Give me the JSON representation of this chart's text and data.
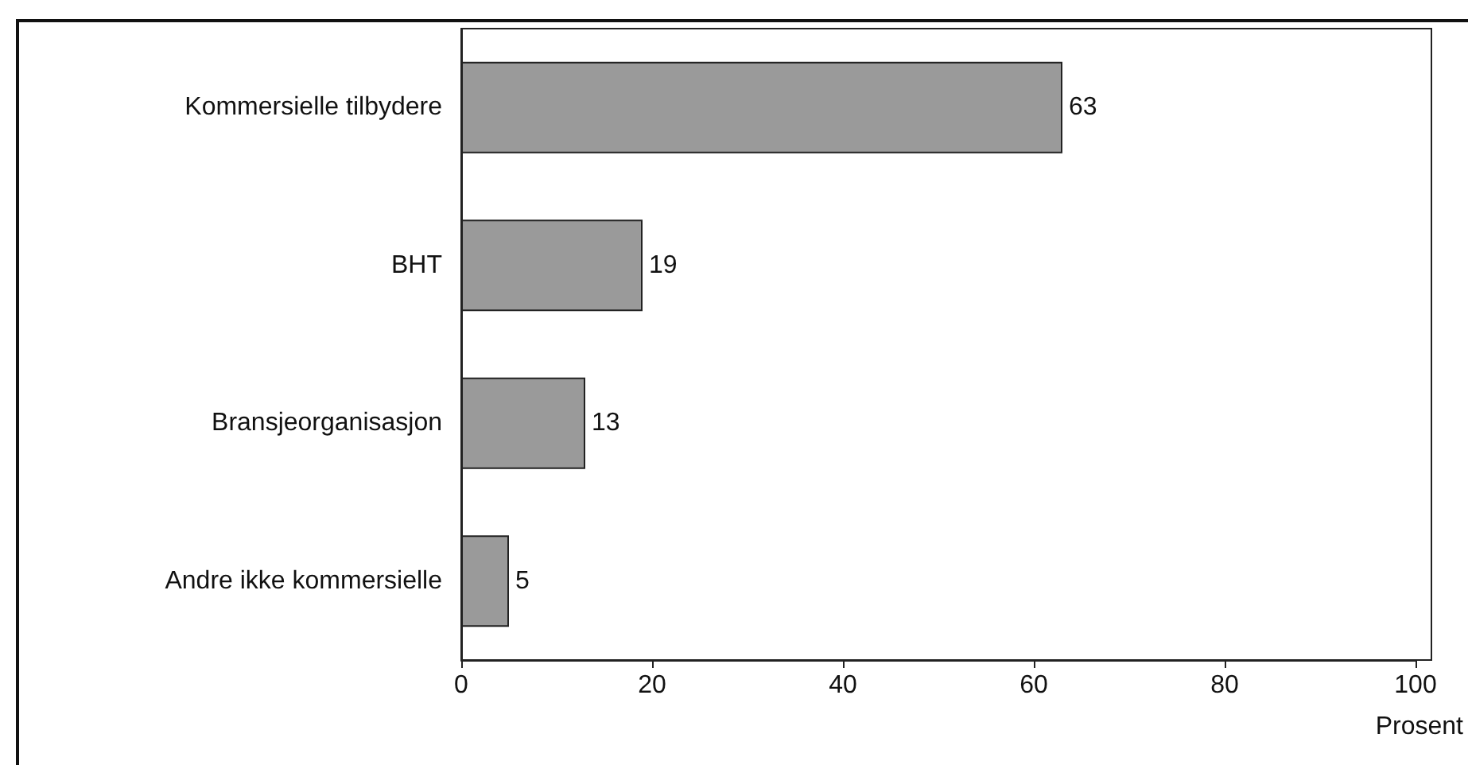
{
  "chart_data": {
    "type": "bar",
    "orientation": "horizontal",
    "xlabel": "Prosent",
    "categories": [
      "Kommersielle tilbydere",
      "BHT",
      "Bransjeorganisasjon",
      "Andre ikke kommersielle"
    ],
    "values": [
      63,
      19,
      13,
      5
    ],
    "color": "#9a9a9a",
    "xlim": [
      0,
      100
    ],
    "xticks": [
      0,
      20,
      40,
      60,
      80,
      100
    ],
    "data_labels": true,
    "grid": false
  }
}
